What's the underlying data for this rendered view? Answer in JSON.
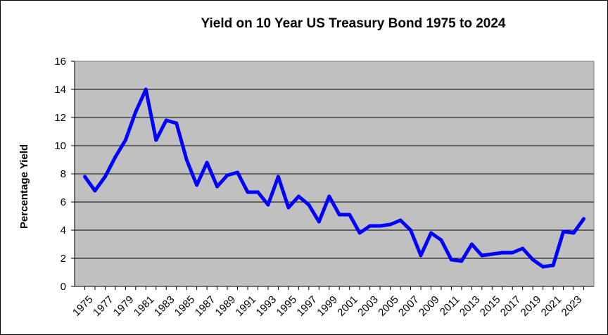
{
  "chart_data": {
    "type": "line",
    "title": "Yield on 10 Year US Treasury Bond 1975 to 2024",
    "xlabel": "",
    "ylabel": "Percentage Yield",
    "ylim": [
      0,
      16
    ],
    "yticks": [
      0,
      2,
      4,
      6,
      8,
      10,
      12,
      14,
      16
    ],
    "xtick_labels": [
      "1975",
      "1977",
      "1979",
      "1981",
      "1983",
      "1985",
      "1987",
      "1989",
      "1991",
      "1993",
      "1995",
      "1997",
      "1999",
      "2001",
      "2003",
      "2005",
      "2007",
      "2009",
      "2011",
      "2013",
      "2015",
      "2017",
      "2019",
      "2021",
      "2023"
    ],
    "grid": true,
    "legend": "none",
    "plot_background": "#C0C0C0",
    "line_color": "#0000FF",
    "series": [
      {
        "x": [
          1975,
          1976,
          1977,
          1978,
          1979,
          1980,
          1981,
          1982,
          1983,
          1984,
          1985,
          1986,
          1987,
          1988,
          1989,
          1990,
          1991,
          1992,
          1993,
          1994,
          1995,
          1996,
          1997,
          1998,
          1999,
          2000,
          2001,
          2002,
          2003,
          2004,
          2005,
          2006,
          2007,
          2008,
          2009,
          2010,
          2011,
          2012,
          2013,
          2014,
          2015,
          2016,
          2017,
          2018,
          2019,
          2020,
          2021,
          2022,
          2023,
          2024
        ],
        "values": [
          7.8,
          6.8,
          7.8,
          9.2,
          10.4,
          12.4,
          14.0,
          10.4,
          11.8,
          11.6,
          9.0,
          7.2,
          8.8,
          7.1,
          7.9,
          8.1,
          6.7,
          6.7,
          5.8,
          7.8,
          5.6,
          6.4,
          5.8,
          4.6,
          6.4,
          5.1,
          5.1,
          3.8,
          4.3,
          4.3,
          4.4,
          4.7,
          4.0,
          2.2,
          3.8,
          3.3,
          1.9,
          1.8,
          3.0,
          2.2,
          2.3,
          2.4,
          2.4,
          2.7,
          1.9,
          1.4,
          1.5,
          3.9,
          3.8,
          4.8
        ]
      }
    ]
  }
}
